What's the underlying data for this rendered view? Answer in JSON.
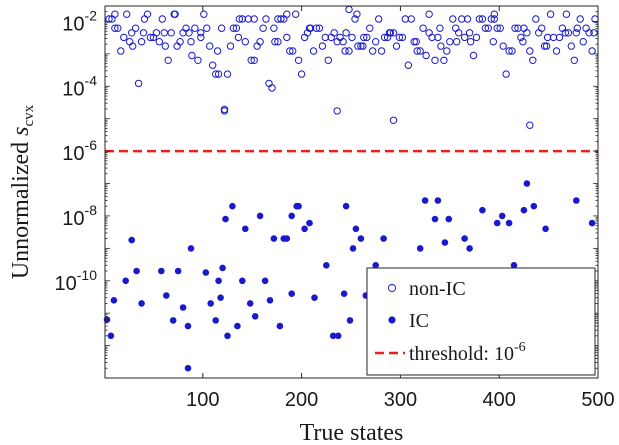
{
  "chart_data": {
    "type": "scatter",
    "xlabel": "True states",
    "ylabel": {
      "prefix": "Unnormalized ",
      "var": "s",
      "sub": "cvx"
    },
    "xlim": [
      1,
      500
    ],
    "ylim": [
      1e-13,
      0.03
    ],
    "y_scale": "log",
    "x_ticks": [
      100,
      200,
      300,
      400,
      500
    ],
    "y_ticks": [
      {
        "value": 1e-10,
        "base": "10",
        "exp": "-10"
      },
      {
        "value": 1e-08,
        "base": "10",
        "exp": "-8"
      },
      {
        "value": 1e-06,
        "base": "10",
        "exp": "-6"
      },
      {
        "value": 0.0001,
        "base": "10",
        "exp": "-4"
      },
      {
        "value": 0.01,
        "base": "10",
        "exp": "-2"
      }
    ],
    "grid": false,
    "legend_position": "bottom-right",
    "colors": {
      "points": "#1a1acc",
      "threshold": "#e8231e",
      "axis": "#262626"
    },
    "threshold": {
      "value": 1e-06,
      "label_prefix": "threshold: ",
      "label_base": "10",
      "label_exp": "-6"
    },
    "series": [
      {
        "name": "non-IC",
        "marker": "open-circle",
        "points": [
          [
            5,
            0.0119
          ],
          [
            8,
            0.0119
          ],
          [
            11,
            0.00619
          ],
          [
            14,
            0.00619
          ],
          [
            17,
            0.00123
          ],
          [
            20,
            0.00323
          ],
          [
            23,
            0.0168
          ],
          [
            26,
            0.00237
          ],
          [
            29,
            0.00174
          ],
          [
            32,
            0.00619
          ],
          [
            35,
            0.000123
          ],
          [
            38,
            0.00237
          ],
          [
            41,
            0.0119
          ],
          [
            44,
            0.0168
          ],
          [
            47,
            0.00323
          ],
          [
            50,
            0.00323
          ],
          [
            53,
            0.00448
          ],
          [
            56,
            0.00237
          ],
          [
            59,
            0.0119
          ],
          [
            62,
            0.00174
          ],
          [
            65,
            0.000632
          ],
          [
            68,
            0.00448
          ],
          [
            71,
            0.0168
          ],
          [
            74,
            0.00174
          ],
          [
            77,
            0.00237
          ],
          [
            80,
            0.00448
          ],
          [
            83,
            0.00619
          ],
          [
            86,
            0.00448
          ],
          [
            89,
            0.000894
          ],
          [
            92,
            0.00619
          ],
          [
            95,
            0.000632
          ],
          [
            98,
            0.00323
          ],
          [
            101,
            0.0168
          ],
          [
            104,
            0.00619
          ],
          [
            107,
            0.00174
          ],
          [
            110,
            0.000448
          ],
          [
            113,
            0.000237
          ],
          [
            116,
            0.000237
          ],
          [
            119,
            0.00619
          ],
          [
            122,
            1.94e-05
          ],
          [
            125,
            0.000237
          ],
          [
            128,
            0.00174
          ],
          [
            131,
            0.00619
          ],
          [
            134,
            0.00619
          ],
          [
            137,
            0.0119
          ],
          [
            140,
            0.0119
          ],
          [
            143,
            0.00237
          ],
          [
            146,
            0.0119
          ],
          [
            149,
            0.000632
          ],
          [
            152,
            0.000632
          ],
          [
            155,
            0.00174
          ],
          [
            158,
            0.00237
          ],
          [
            161,
            0.00619
          ],
          [
            164,
            0.0119
          ],
          [
            167,
            0.000123
          ],
          [
            170,
            8.94e-05
          ],
          [
            173,
            0.00237
          ],
          [
            176,
            0.0119
          ],
          [
            179,
            0.0119
          ],
          [
            182,
            0.0119
          ],
          [
            185,
            0.00323
          ],
          [
            188,
            0.00123
          ],
          [
            191,
            0.00123
          ],
          [
            194,
            0.0168
          ],
          [
            197,
            0.000632
          ],
          [
            200,
            0.000237
          ],
          [
            203,
            0.00323
          ],
          [
            206,
            0.00448
          ],
          [
            209,
            0.00619
          ],
          [
            212,
            0.00123
          ],
          [
            215,
            0.00619
          ],
          [
            218,
            0.00619
          ],
          [
            221,
            0.00174
          ],
          [
            224,
            0.00323
          ],
          [
            227,
            0.000632
          ],
          [
            230,
            0.00323
          ],
          [
            233,
            0.00448
          ],
          [
            236,
            0.00237
          ],
          [
            239,
            0.00323
          ],
          [
            242,
            0.00237
          ],
          [
            245,
            0.00448
          ],
          [
            248,
            0.00123
          ],
          [
            251,
            0.00323
          ],
          [
            254,
            0.0119
          ],
          [
            257,
            0.00174
          ],
          [
            260,
            0.00174
          ],
          [
            263,
            0.00323
          ],
          [
            266,
            0.00323
          ],
          [
            269,
            0.00619
          ],
          [
            272,
            0.00123
          ],
          [
            275,
            0.00237
          ],
          [
            278,
            0.0119
          ],
          [
            281,
            0.00123
          ],
          [
            284,
            0.00323
          ],
          [
            287,
            0.00323
          ],
          [
            290,
            0.00448
          ],
          [
            293,
            0.00448
          ],
          [
            296,
            0.00174
          ],
          [
            299,
            0.00323
          ],
          [
            302,
            0.00323
          ],
          [
            305,
            0.0119
          ],
          [
            308,
            0.000448
          ],
          [
            311,
            0.0119
          ],
          [
            314,
            0.00237
          ],
          [
            317,
            0.00123
          ],
          [
            320,
            0.00123
          ],
          [
            323,
            0.00619
          ],
          [
            326,
            0.000894
          ],
          [
            329,
            0.00448
          ],
          [
            332,
            0.00323
          ],
          [
            335,
            0.000632
          ],
          [
            338,
            0.00323
          ],
          [
            341,
            0.00174
          ],
          [
            344,
            0.000632
          ],
          [
            347,
            0.00123
          ],
          [
            350,
            0.00237
          ],
          [
            353,
            0.0119
          ],
          [
            356,
            0.00619
          ],
          [
            359,
            0.00448
          ],
          [
            362,
            0.0119
          ],
          [
            365,
            0.00323
          ],
          [
            368,
            0.0119
          ],
          [
            371,
            0.00237
          ],
          [
            374,
            0.000894
          ],
          [
            377,
            0.00323
          ],
          [
            380,
            0.0119
          ],
          [
            383,
            0.0119
          ],
          [
            386,
            0.00619
          ],
          [
            389,
            0.00619
          ],
          [
            392,
            0.0119
          ],
          [
            395,
            0.0119
          ],
          [
            398,
            0.00619
          ],
          [
            401,
            0.00619
          ],
          [
            404,
            0.00174
          ],
          [
            407,
            0.000237
          ],
          [
            410,
            0.00123
          ],
          [
            413,
            0.00123
          ],
          [
            416,
            0.00619
          ],
          [
            419,
            0.00619
          ],
          [
            422,
            0.00323
          ],
          [
            425,
            0.00619
          ],
          [
            428,
            0.00448
          ],
          [
            431,
            0.00123
          ],
          [
            434,
            0.000632
          ],
          [
            437,
            0.0119
          ],
          [
            440,
            0.00448
          ],
          [
            443,
            0.00619
          ],
          [
            446,
            0.00174
          ],
          [
            449,
            0.00323
          ],
          [
            452,
            0.0168
          ],
          [
            455,
            0.00323
          ],
          [
            458,
            0.00123
          ],
          [
            461,
            0.00323
          ],
          [
            464,
            0.00619
          ],
          [
            467,
            0.00448
          ],
          [
            470,
            0.00448
          ],
          [
            473,
            0.00174
          ],
          [
            476,
            0.000632
          ],
          [
            479,
            0.00619
          ],
          [
            482,
            0.0119
          ],
          [
            485,
            0.00237
          ],
          [
            488,
            0.00619
          ],
          [
            491,
            0.00448
          ],
          [
            494,
            0.00123
          ],
          [
            497,
            0.0119
          ],
          [
            11,
            0.0168
          ],
          [
            40,
            0.00448
          ],
          [
            61,
            0.00448
          ],
          [
            88,
            0.00237
          ],
          [
            115,
            0.00123
          ],
          [
            136,
            0.00323
          ],
          [
            172,
            0.00619
          ],
          [
            208,
            0.00619
          ],
          [
            244,
            0.00123
          ],
          [
            262,
            0.00174
          ],
          [
            289,
            0.00448
          ],
          [
            316,
            0.00237
          ],
          [
            340,
            0.00619
          ],
          [
            370,
            0.00448
          ],
          [
            394,
            0.00237
          ],
          [
            424,
            0.00237
          ],
          [
            448,
            0.00174
          ],
          [
            478,
            0.00448
          ],
          [
            496,
            0.00448
          ],
          [
            293,
            8.94e-06
          ],
          [
            431,
            6.32e-06
          ],
          [
            236,
            1.74e-05
          ],
          [
            122,
            1.74e-05
          ],
          [
            72,
            0.0168
          ],
          [
            152,
            0.0119
          ],
          [
            185,
            0.0168
          ],
          [
            256,
            0.0168
          ],
          [
            329,
            0.0168
          ],
          [
            395,
            0.0168
          ],
          [
            468,
            0.0168
          ],
          [
            248,
            0.0236
          ],
          [
            28,
            0.00448
          ],
          [
            98,
            0.00448
          ],
          [
            176,
            0.00237
          ],
          [
            357,
            0.00237
          ]
        ]
      },
      {
        "name": "IC",
        "marker": "filled-circle",
        "points": [
          [
            3,
            6.3e-12
          ],
          [
            7,
            2e-12
          ],
          [
            10,
            2.5e-11
          ],
          [
            22,
            1e-10
          ],
          [
            28,
            1.8e-09
          ],
          [
            33,
            2e-10
          ],
          [
            38,
            2e-11
          ],
          [
            58,
            2e-10
          ],
          [
            63,
            3.5e-11
          ],
          [
            70,
            6e-12
          ],
          [
            75,
            2e-10
          ],
          [
            80,
            1.5e-11
          ],
          [
            85,
            4e-12
          ],
          [
            88,
            1e-09
          ],
          [
            103,
            1.8e-10
          ],
          [
            108,
            2e-11
          ],
          [
            113,
            6e-12
          ],
          [
            116,
            1e-10
          ],
          [
            118,
            3e-11
          ],
          [
            120,
            2.5e-10
          ],
          [
            123,
            8e-09
          ],
          [
            125,
            2e-12
          ],
          [
            130,
            2e-08
          ],
          [
            135,
            4e-12
          ],
          [
            140,
            1e-10
          ],
          [
            143,
            4e-09
          ],
          [
            148,
            2e-11
          ],
          [
            153,
            8e-12
          ],
          [
            158,
            1e-08
          ],
          [
            163,
            1e-10
          ],
          [
            168,
            2.5e-11
          ],
          [
            172,
            2e-09
          ],
          [
            178,
            4e-12
          ],
          [
            182,
            2e-09
          ],
          [
            185,
            2e-09
          ],
          [
            190,
            1e-08
          ],
          [
            195,
            2e-08
          ],
          [
            197,
            2e-08
          ],
          [
            203,
            4e-09
          ],
          [
            208,
            6e-09
          ],
          [
            213,
            3e-11
          ],
          [
            225,
            3e-10
          ],
          [
            232,
            2e-12
          ],
          [
            237,
            2e-12
          ],
          [
            243,
            4e-11
          ],
          [
            249,
            6e-12
          ],
          [
            252,
            1e-09
          ],
          [
            255,
            4e-09
          ],
          [
            260,
            2e-09
          ],
          [
            265,
            3.5e-11
          ],
          [
            270,
            2e-10
          ],
          [
            275,
            3e-10
          ],
          [
            278,
            4e-12
          ],
          [
            283,
            2e-09
          ],
          [
            289,
            3.5e-11
          ],
          [
            295,
            1e-11
          ],
          [
            302,
            8e-12
          ],
          [
            310,
            1.5e-11
          ],
          [
            316,
            2e-10
          ],
          [
            320,
            1e-09
          ],
          [
            325,
            3e-08
          ],
          [
            328,
            6e-11
          ],
          [
            332,
            2e-12
          ],
          [
            335,
            8e-09
          ],
          [
            338,
            3e-08
          ],
          [
            341,
            2e-10
          ],
          [
            345,
            1.5e-09
          ],
          [
            349,
            8e-09
          ],
          [
            353,
            3.5e-11
          ],
          [
            358,
            1e-11
          ],
          [
            361,
            4e-12
          ],
          [
            363,
            2e-10
          ],
          [
            365,
            2e-09
          ],
          [
            370,
            1e-09
          ],
          [
            373,
            6e-11
          ],
          [
            378,
            4e-11
          ],
          [
            383,
            1.5e-08
          ],
          [
            388,
            4e-11
          ],
          [
            393,
            2e-11
          ],
          [
            398,
            6e-09
          ],
          [
            403,
            1e-08
          ],
          [
            410,
            6e-09
          ],
          [
            415,
            3e-10
          ],
          [
            420,
            1e-11
          ],
          [
            425,
            1.5e-08
          ],
          [
            428,
            1e-07
          ],
          [
            430,
            3.5e-11
          ],
          [
            435,
            2e-08
          ],
          [
            442,
            6e-12
          ],
          [
            447,
            4e-09
          ],
          [
            452,
            1e-10
          ],
          [
            457,
            6e-12
          ],
          [
            470,
            4e-11
          ],
          [
            478,
            3e-08
          ],
          [
            486,
            1e-10
          ],
          [
            494,
            6e-09
          ],
          [
            190,
            4e-11
          ],
          [
            245,
            2e-08
          ],
          [
            360,
            8e-12
          ],
          [
            85,
            2e-13
          ]
        ]
      }
    ]
  }
}
